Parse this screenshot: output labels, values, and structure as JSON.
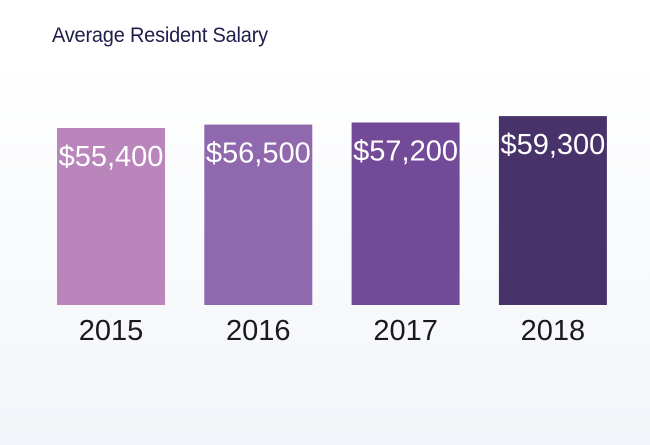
{
  "chart_data": {
    "type": "bar",
    "title": "Average Resident Salary",
    "xlabel": "",
    "ylabel": "",
    "categories": [
      "2015",
      "2016",
      "2017",
      "2018"
    ],
    "values": [
      55400,
      56500,
      57200,
      59300
    ],
    "data_labels": [
      "$55,400",
      "$56,500",
      "$57,200",
      "$59,300"
    ],
    "colors": [
      "#b985bb",
      "#8f68ad",
      "#724a98",
      "#47336a"
    ],
    "grid": false,
    "legend": "none"
  }
}
